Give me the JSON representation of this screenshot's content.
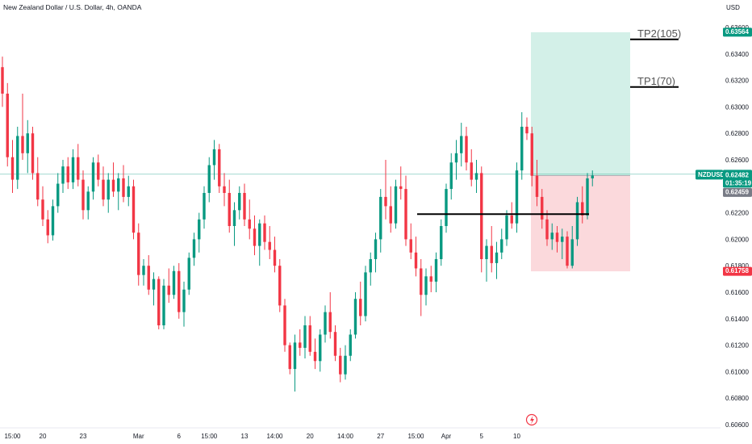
{
  "header": {
    "title": "New Zealand Dollar / U.S. Dollar, 4h, OANDA",
    "currency": "USD"
  },
  "colors": {
    "up": "#089981",
    "down": "#f23645",
    "target_zone": "#d3f0e8",
    "stop_zone": "#fbd9dc",
    "price_line": "#089981",
    "neutral_badge": "#787b86"
  },
  "price_scale": {
    "labels": [
      "0.63600",
      "0.63400",
      "0.63200",
      "0.63000",
      "0.62800",
      "0.62600",
      "0.62200",
      "0.62000",
      "0.61800",
      "0.61600",
      "0.61400",
      "0.61200",
      "0.61000",
      "0.60800",
      "0.60600"
    ],
    "min": 0.606,
    "max": 0.6366,
    "badges": {
      "tp_price": "0.63564",
      "symbol": "NZDUSD",
      "last_price": "0.62482",
      "countdown": "01:35:19",
      "prev_price": "0.62459",
      "stop_price": "0.61758"
    }
  },
  "time_axis": {
    "labels": [
      "15:00",
      "20",
      "23",
      "Mar",
      "6",
      "15:00",
      "13",
      "14:00",
      "20",
      "14:00",
      "27",
      "15:00",
      "Apr",
      "5",
      "10"
    ],
    "bar_indices": [
      2,
      8,
      16,
      27,
      35,
      41,
      48,
      54,
      61,
      68,
      75,
      82,
      88,
      95,
      102
    ]
  },
  "annotations": {
    "tp2_label": "TP2(105)",
    "tp1_label": "TP1(70)",
    "tp2_level": 0.6351,
    "tp1_level": 0.6315,
    "support_level": 0.6219,
    "entry": 0.62482,
    "target": 0.63564,
    "stop": 0.61758
  },
  "chart_data": {
    "type": "candlestick",
    "symbol": "NZDUSD",
    "interval": "4h",
    "ohlc": [
      [
        0.633,
        0.6338,
        0.63,
        0.631
      ],
      [
        0.631,
        0.6318,
        0.6255,
        0.6262
      ],
      [
        0.6262,
        0.6275,
        0.6235,
        0.6245
      ],
      [
        0.6245,
        0.6285,
        0.6238,
        0.6278
      ],
      [
        0.6278,
        0.631,
        0.626,
        0.6265
      ],
      [
        0.6265,
        0.629,
        0.625,
        0.628
      ],
      [
        0.628,
        0.6285,
        0.6245,
        0.625
      ],
      [
        0.625,
        0.6262,
        0.6225,
        0.623
      ],
      [
        0.623,
        0.624,
        0.621,
        0.6215
      ],
      [
        0.6215,
        0.6222,
        0.6197,
        0.6203
      ],
      [
        0.6203,
        0.623,
        0.6199,
        0.6225
      ],
      [
        0.6225,
        0.625,
        0.622,
        0.6242
      ],
      [
        0.6242,
        0.626,
        0.6235,
        0.6255
      ],
      [
        0.6255,
        0.6262,
        0.6238,
        0.6243
      ],
      [
        0.6243,
        0.6268,
        0.6238,
        0.6262
      ],
      [
        0.6262,
        0.6272,
        0.624,
        0.6245
      ],
      [
        0.6245,
        0.6252,
        0.6215,
        0.6222
      ],
      [
        0.6222,
        0.624,
        0.6215,
        0.6236
      ],
      [
        0.6236,
        0.6262,
        0.623,
        0.6258
      ],
      [
        0.6258,
        0.6264,
        0.624,
        0.6245
      ],
      [
        0.6245,
        0.6255,
        0.6225,
        0.623
      ],
      [
        0.623,
        0.625,
        0.622,
        0.6245
      ],
      [
        0.6245,
        0.6258,
        0.6232,
        0.6236
      ],
      [
        0.6236,
        0.625,
        0.6222,
        0.6246
      ],
      [
        0.6246,
        0.6256,
        0.6228,
        0.6232
      ],
      [
        0.6232,
        0.6248,
        0.6225,
        0.624
      ],
      [
        0.624,
        0.6245,
        0.62,
        0.6205
      ],
      [
        0.6205,
        0.6212,
        0.6165,
        0.6173
      ],
      [
        0.6173,
        0.6185,
        0.6165,
        0.618
      ],
      [
        0.618,
        0.6188,
        0.6158,
        0.6162
      ],
      [
        0.6162,
        0.6175,
        0.615,
        0.617
      ],
      [
        0.617,
        0.6172,
        0.6132,
        0.6135
      ],
      [
        0.6135,
        0.617,
        0.6132,
        0.6165
      ],
      [
        0.6165,
        0.6178,
        0.6152,
        0.6158
      ],
      [
        0.6158,
        0.618,
        0.6155,
        0.6176
      ],
      [
        0.6176,
        0.6182,
        0.614,
        0.6145
      ],
      [
        0.6145,
        0.6168,
        0.6134,
        0.6162
      ],
      [
        0.6162,
        0.619,
        0.6158,
        0.6186
      ],
      [
        0.6186,
        0.6205,
        0.618,
        0.62
      ],
      [
        0.62,
        0.622,
        0.619,
        0.6215
      ],
      [
        0.6215,
        0.624,
        0.6208,
        0.6235
      ],
      [
        0.6235,
        0.6262,
        0.6228,
        0.6256
      ],
      [
        0.6256,
        0.6275,
        0.6245,
        0.6268
      ],
      [
        0.6268,
        0.6272,
        0.6235,
        0.624
      ],
      [
        0.624,
        0.625,
        0.6225,
        0.6235
      ],
      [
        0.6235,
        0.6245,
        0.6205,
        0.621
      ],
      [
        0.621,
        0.6228,
        0.6195,
        0.6222
      ],
      [
        0.6222,
        0.624,
        0.6215,
        0.6235
      ],
      [
        0.6235,
        0.6242,
        0.621,
        0.6215
      ],
      [
        0.6215,
        0.623,
        0.62,
        0.6208
      ],
      [
        0.6208,
        0.6218,
        0.6188,
        0.6195
      ],
      [
        0.6195,
        0.6215,
        0.618,
        0.6212
      ],
      [
        0.6212,
        0.6218,
        0.6192,
        0.6198
      ],
      [
        0.6198,
        0.621,
        0.6185,
        0.6192
      ],
      [
        0.6192,
        0.6202,
        0.6175,
        0.618
      ],
      [
        0.618,
        0.6185,
        0.6145,
        0.615
      ],
      [
        0.615,
        0.6155,
        0.6115,
        0.612
      ],
      [
        0.612,
        0.6122,
        0.6098,
        0.6102
      ],
      [
        0.6102,
        0.6128,
        0.6085,
        0.6122
      ],
      [
        0.6122,
        0.6132,
        0.6112,
        0.6118
      ],
      [
        0.6118,
        0.6142,
        0.611,
        0.6135
      ],
      [
        0.6135,
        0.6142,
        0.6112,
        0.6115
      ],
      [
        0.6115,
        0.6125,
        0.6102,
        0.6108
      ],
      [
        0.6108,
        0.6132,
        0.61,
        0.6128
      ],
      [
        0.6128,
        0.615,
        0.6122,
        0.6145
      ],
      [
        0.6145,
        0.616,
        0.6125,
        0.613
      ],
      [
        0.613,
        0.6135,
        0.6108,
        0.6112
      ],
      [
        0.6112,
        0.6118,
        0.6092,
        0.6098
      ],
      [
        0.6098,
        0.612,
        0.6094,
        0.6112
      ],
      [
        0.6112,
        0.6132,
        0.6108,
        0.6128
      ],
      [
        0.6128,
        0.616,
        0.6125,
        0.6155
      ],
      [
        0.6155,
        0.6168,
        0.6135,
        0.6142
      ],
      [
        0.6142,
        0.618,
        0.6138,
        0.6175
      ],
      [
        0.6175,
        0.619,
        0.6165,
        0.6185
      ],
      [
        0.6185,
        0.6205,
        0.6175,
        0.62
      ],
      [
        0.62,
        0.6238,
        0.619,
        0.6232
      ],
      [
        0.6232,
        0.626,
        0.6215,
        0.6225
      ],
      [
        0.6225,
        0.624,
        0.6205,
        0.6212
      ],
      [
        0.6212,
        0.6245,
        0.6208,
        0.624
      ],
      [
        0.624,
        0.6255,
        0.623,
        0.6238
      ],
      [
        0.6238,
        0.6248,
        0.6195,
        0.62
      ],
      [
        0.62,
        0.6212,
        0.6185,
        0.619
      ],
      [
        0.619,
        0.6202,
        0.6172,
        0.6178
      ],
      [
        0.6178,
        0.6185,
        0.6142,
        0.6158
      ],
      [
        0.6158,
        0.6178,
        0.615,
        0.6172
      ],
      [
        0.6172,
        0.618,
        0.616,
        0.6168
      ],
      [
        0.6168,
        0.619,
        0.616,
        0.6185
      ],
      [
        0.6185,
        0.6215,
        0.618,
        0.621
      ],
      [
        0.621,
        0.6242,
        0.6205,
        0.6238
      ],
      [
        0.6238,
        0.6265,
        0.623,
        0.6258
      ],
      [
        0.6258,
        0.6275,
        0.6245,
        0.6265
      ],
      [
        0.6265,
        0.6288,
        0.6255,
        0.6278
      ],
      [
        0.6278,
        0.6285,
        0.6252,
        0.6258
      ],
      [
        0.6258,
        0.6268,
        0.624,
        0.6245
      ],
      [
        0.6245,
        0.626,
        0.6235,
        0.625
      ],
      [
        0.625,
        0.6255,
        0.6175,
        0.6185
      ],
      [
        0.6185,
        0.62,
        0.6168,
        0.6195
      ],
      [
        0.6195,
        0.621,
        0.6175,
        0.6182
      ],
      [
        0.6182,
        0.6198,
        0.617,
        0.619
      ],
      [
        0.619,
        0.6208,
        0.6185,
        0.62
      ],
      [
        0.62,
        0.6222,
        0.6195,
        0.6218
      ],
      [
        0.6218,
        0.6228,
        0.6208,
        0.6212
      ],
      [
        0.6212,
        0.6258,
        0.6205,
        0.6252
      ],
      [
        0.6252,
        0.6296,
        0.6245,
        0.6285
      ],
      [
        0.6285,
        0.6292,
        0.6275,
        0.628
      ],
      [
        0.628,
        0.6285,
        0.624,
        0.6248
      ],
      [
        0.6248,
        0.626,
        0.6225,
        0.6232
      ],
      [
        0.6232,
        0.6238,
        0.6208,
        0.6215
      ],
      [
        0.6215,
        0.6222,
        0.6195,
        0.62
      ],
      [
        0.62,
        0.6212,
        0.6192,
        0.6205
      ],
      [
        0.6205,
        0.621,
        0.619,
        0.6198
      ],
      [
        0.6198,
        0.6208,
        0.6185,
        0.6202
      ],
      [
        0.6202,
        0.6206,
        0.6178,
        0.618
      ],
      [
        0.618,
        0.621,
        0.6178,
        0.62
      ],
      [
        0.62,
        0.6232,
        0.6195,
        0.6228
      ],
      [
        0.6228,
        0.624,
        0.6212,
        0.6218
      ],
      [
        0.6218,
        0.625,
        0.6215,
        0.6246
      ],
      [
        0.6246,
        0.6252,
        0.624,
        0.62482
      ]
    ]
  }
}
